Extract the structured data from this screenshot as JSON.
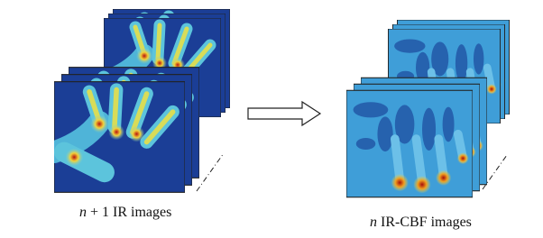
{
  "labels": {
    "input": {
      "variable": "n",
      "text": "+ 1 IR images"
    },
    "output": {
      "variable": "n",
      "text": "IR-CBF images"
    }
  }
}
